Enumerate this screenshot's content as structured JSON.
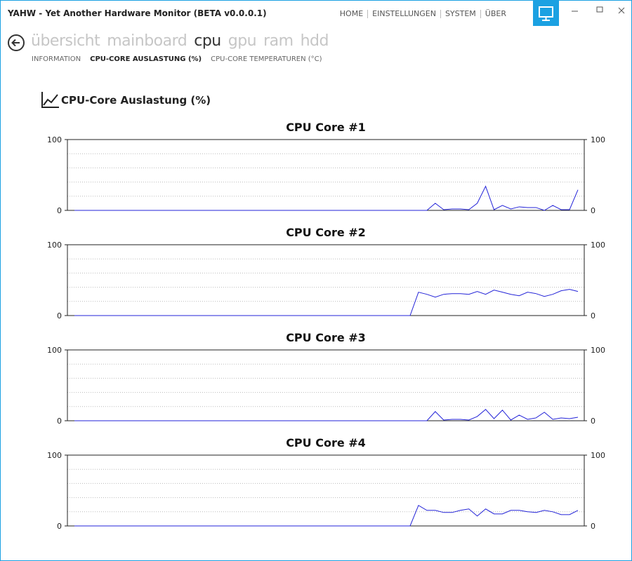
{
  "window": {
    "title": "YAHW - Yet Another Hardware Monitor (BETA v0.0.0.1)",
    "menu": [
      "HOME",
      "EINSTELLUNGEN",
      "SYSTEM",
      "ÜBER"
    ]
  },
  "nav": {
    "tabs": [
      "übersicht",
      "mainboard",
      "cpu",
      "gpu",
      "ram",
      "hdd"
    ],
    "active": 2,
    "subtabs": [
      "INFORMATION",
      "CPU-CORE AUSLASTUNG (%)",
      "CPU-CORE TEMPERATUREN (°C)"
    ],
    "active_subtab": 1
  },
  "section_title": "CPU-Core Auslastung (%)",
  "chart_data": [
    {
      "type": "line",
      "title": "CPU Core #1",
      "color": "#2323d8",
      "ylim": [
        0,
        100
      ],
      "yticks": [
        0,
        100
      ],
      "ygrid": [
        20,
        40,
        60,
        80
      ],
      "values": [
        0,
        0,
        0,
        0,
        0,
        0,
        0,
        0,
        0,
        0,
        0,
        0,
        0,
        0,
        0,
        0,
        0,
        0,
        0,
        0,
        0,
        0,
        0,
        0,
        0,
        0,
        0,
        0,
        0,
        0,
        0,
        0,
        0,
        0,
        0,
        0,
        0,
        0,
        0,
        0,
        0,
        0,
        0,
        10,
        1,
        2,
        2,
        1,
        10,
        34,
        1,
        7,
        2,
        5,
        4,
        4,
        0,
        7,
        1,
        1,
        29
      ]
    },
    {
      "type": "line",
      "title": "CPU Core #2",
      "color": "#2323d8",
      "ylim": [
        0,
        100
      ],
      "yticks": [
        0,
        100
      ],
      "ygrid": [
        20,
        40,
        60,
        80
      ],
      "values": [
        0,
        0,
        0,
        0,
        0,
        0,
        0,
        0,
        0,
        0,
        0,
        0,
        0,
        0,
        0,
        0,
        0,
        0,
        0,
        0,
        0,
        0,
        0,
        0,
        0,
        0,
        0,
        0,
        0,
        0,
        0,
        0,
        0,
        0,
        0,
        0,
        0,
        0,
        0,
        0,
        0,
        33,
        30,
        26,
        30,
        31,
        31,
        30,
        34,
        30,
        36,
        33,
        30,
        28,
        33,
        31,
        27,
        30,
        35,
        37,
        34
      ]
    },
    {
      "type": "line",
      "title": "CPU Core #3",
      "color": "#2323d8",
      "ylim": [
        0,
        100
      ],
      "yticks": [
        0,
        100
      ],
      "ygrid": [
        20,
        40,
        60,
        80
      ],
      "values": [
        0,
        0,
        0,
        0,
        0,
        0,
        0,
        0,
        0,
        0,
        0,
        0,
        0,
        0,
        0,
        0,
        0,
        0,
        0,
        0,
        0,
        0,
        0,
        0,
        0,
        0,
        0,
        0,
        0,
        0,
        0,
        0,
        0,
        0,
        0,
        0,
        0,
        0,
        0,
        0,
        0,
        0,
        0,
        13,
        1,
        2,
        2,
        1,
        6,
        16,
        3,
        15,
        1,
        8,
        2,
        4,
        12,
        2,
        4,
        3,
        5
      ]
    },
    {
      "type": "line",
      "title": "CPU Core #4",
      "color": "#2323d8",
      "ylim": [
        0,
        100
      ],
      "yticks": [
        0,
        100
      ],
      "ygrid": [
        20,
        40,
        60,
        80
      ],
      "values": [
        0,
        0,
        0,
        0,
        0,
        0,
        0,
        0,
        0,
        0,
        0,
        0,
        0,
        0,
        0,
        0,
        0,
        0,
        0,
        0,
        0,
        0,
        0,
        0,
        0,
        0,
        0,
        0,
        0,
        0,
        0,
        0,
        0,
        0,
        0,
        0,
        0,
        0,
        0,
        0,
        0,
        29,
        22,
        22,
        19,
        19,
        22,
        24,
        14,
        24,
        17,
        17,
        22,
        22,
        20,
        19,
        22,
        20,
        16,
        16,
        22
      ]
    }
  ]
}
